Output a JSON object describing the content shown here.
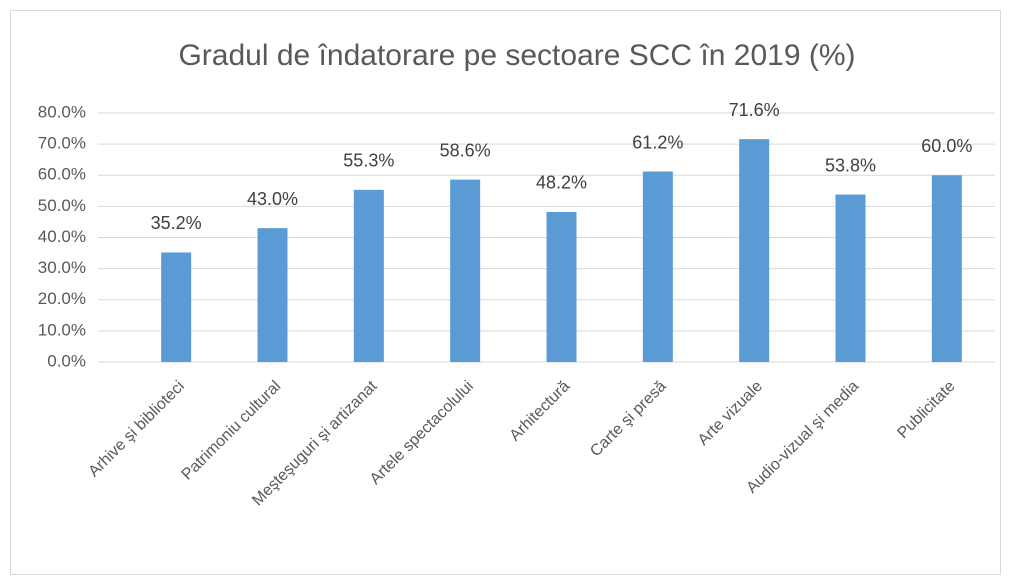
{
  "chart_data": {
    "type": "bar",
    "title": "Gradul de îndatorare pe sectoare SCC în 2019 (%)",
    "categories": [
      "Arhive şi biblioteci",
      "Patrimoniu cultural",
      "Meşteşuguri şi artizanat",
      "Artele spectacolului",
      "Arhitectură",
      "Carte şi presă",
      "Arte vizuale",
      "Audio-vizual şi media",
      "Publicitate"
    ],
    "values": [
      35.2,
      43.0,
      55.3,
      58.6,
      48.2,
      61.2,
      71.6,
      53.8,
      60.0
    ],
    "value_labels": [
      "35.2%",
      "43.0%",
      "55.3%",
      "58.6%",
      "48.2%",
      "61.2%",
      "71.6%",
      "53.8%",
      "60.0%"
    ],
    "color": "#5b9bd5",
    "ylim": [
      0,
      80
    ],
    "yticks": [
      {
        "value": 0,
        "label": "0.0%"
      },
      {
        "value": 10,
        "label": "10.0%"
      },
      {
        "value": 20,
        "label": "20.0%"
      },
      {
        "value": 30,
        "label": "30.0%"
      },
      {
        "value": 40,
        "label": "40.0%"
      },
      {
        "value": 50,
        "label": "50.0%"
      },
      {
        "value": 60,
        "label": "60.0%"
      },
      {
        "value": 70,
        "label": "70.0%"
      },
      {
        "value": 80,
        "label": "80.0%"
      }
    ],
    "grid": true
  }
}
